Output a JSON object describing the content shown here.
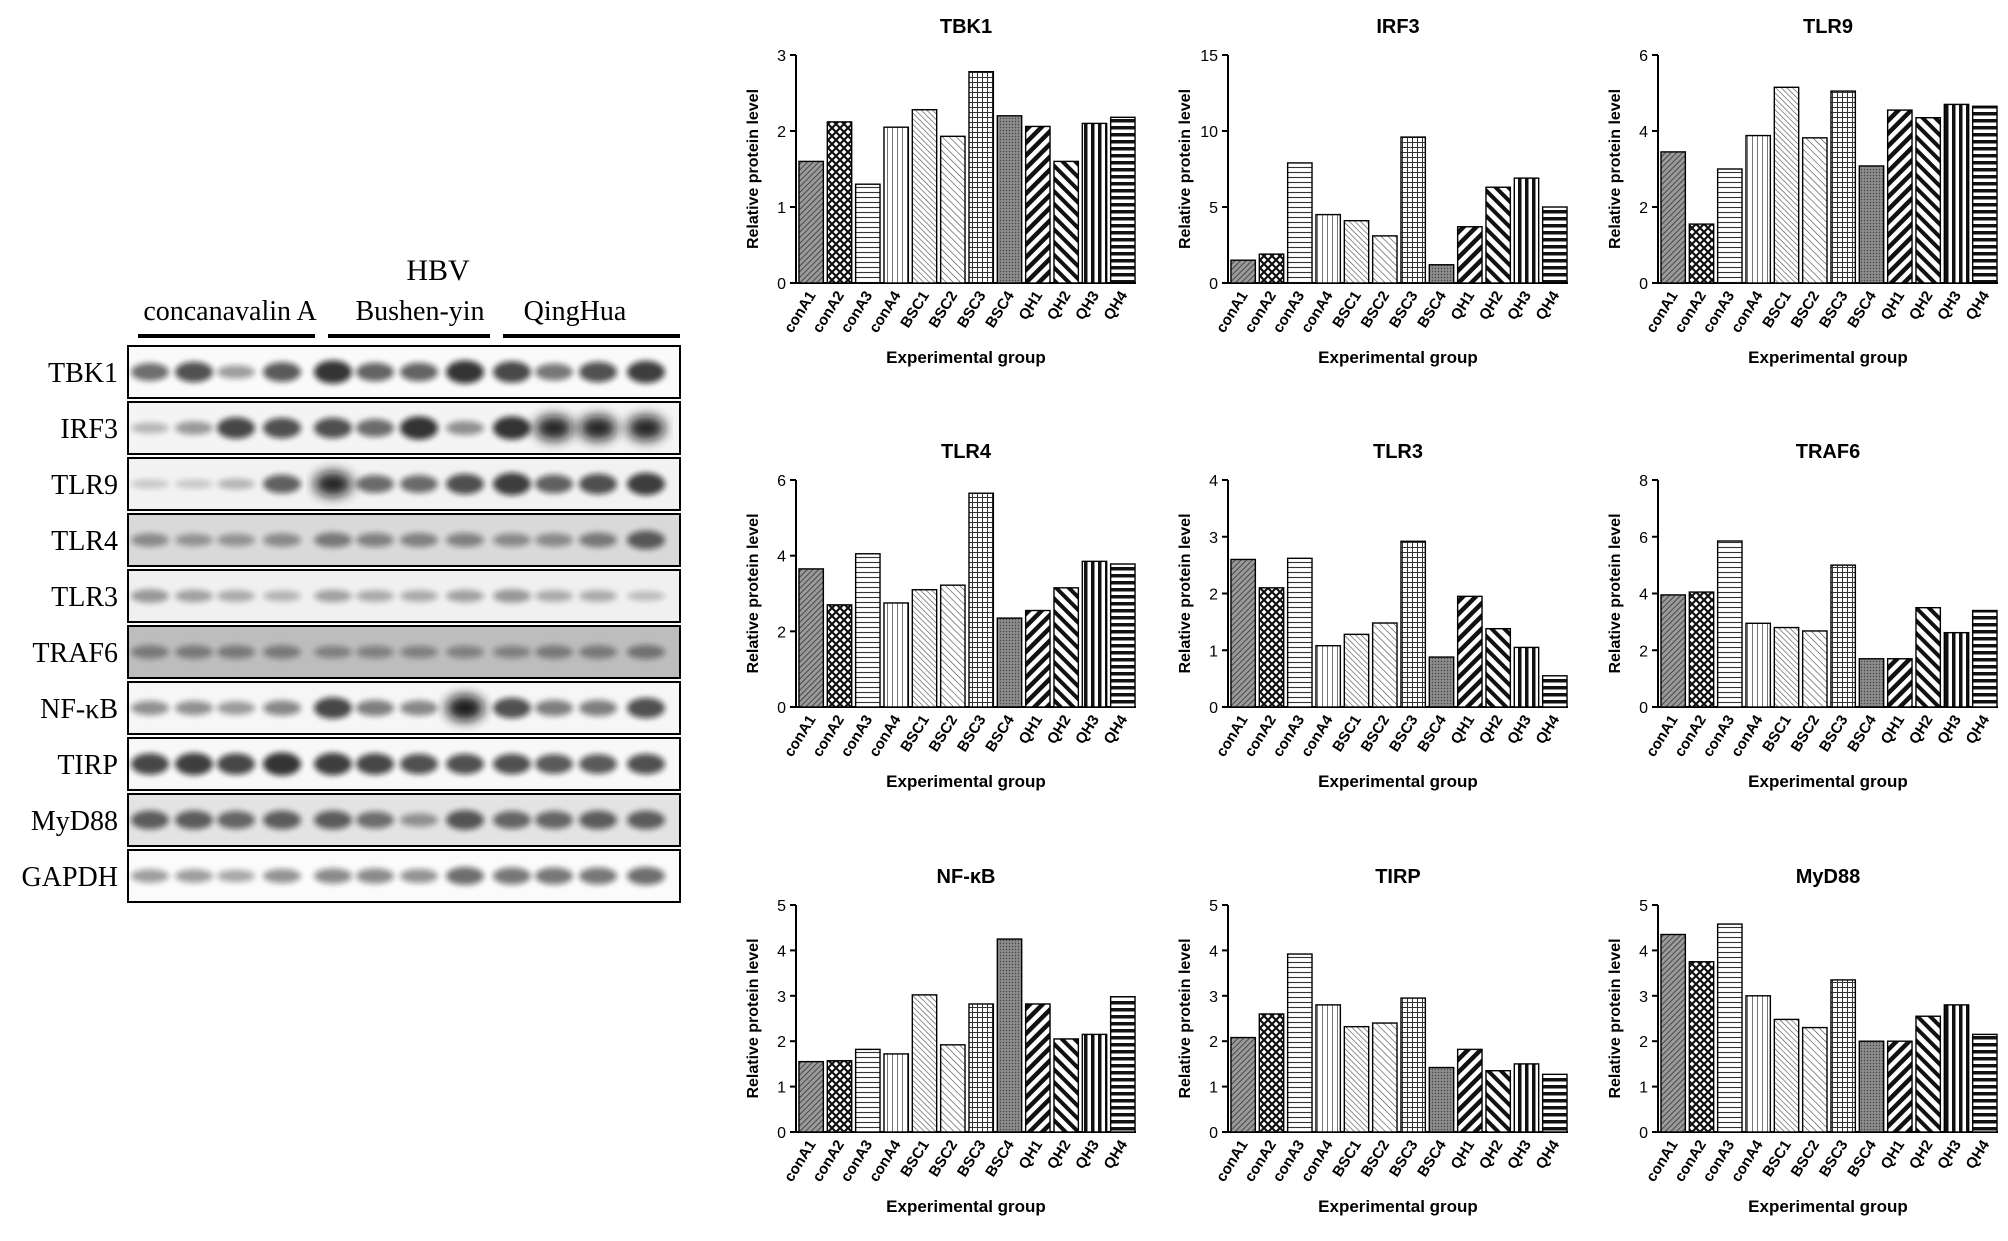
{
  "blot": {
    "header_hbv": "HBV",
    "groups": [
      "concanavalin A",
      "Bushen-yin",
      "QingHua"
    ],
    "proteins": [
      "TBK1",
      "IRF3",
      "TLR9",
      "TLR4",
      "TLR3",
      "TRAF6",
      "NF-κB",
      "TIRP",
      "MyD88",
      "GAPDH"
    ]
  },
  "chart_data": [
    {
      "type": "bar",
      "title": "TBK1",
      "xlabel": "Experimental group",
      "ylabel": "Relative protein level",
      "categories": [
        "conA1",
        "conA2",
        "conA3",
        "conA4",
        "BSC1",
        "BSC2",
        "BSC3",
        "BSC4",
        "QH1",
        "QH2",
        "QH3",
        "QH4"
      ],
      "values": [
        1.6,
        2.12,
        1.3,
        2.05,
        2.28,
        1.93,
        2.78,
        2.2,
        2.06,
        1.6,
        2.1,
        2.18
      ],
      "ylim": [
        0,
        3
      ],
      "yticks": [
        0,
        1,
        2,
        3
      ]
    },
    {
      "type": "bar",
      "title": "IRF3",
      "xlabel": "Experimental group",
      "ylabel": "Relative protein level",
      "categories": [
        "conA1",
        "conA2",
        "conA3",
        "conA4",
        "BSC1",
        "BSC2",
        "BSC3",
        "BSC4",
        "QH1",
        "QH2",
        "QH3",
        "QH4"
      ],
      "values": [
        1.5,
        1.9,
        7.9,
        4.5,
        4.1,
        3.1,
        9.6,
        1.2,
        3.7,
        6.3,
        6.9,
        5.0
      ],
      "ylim": [
        0,
        15
      ],
      "yticks": [
        0,
        5,
        10,
        15
      ]
    },
    {
      "type": "bar",
      "title": "TLR9",
      "xlabel": "Experimental group",
      "ylabel": "Relative protein level",
      "categories": [
        "conA1",
        "conA2",
        "conA3",
        "conA4",
        "BSC1",
        "BSC2",
        "BSC3",
        "BSC4",
        "QH1",
        "QH2",
        "QH3",
        "QH4"
      ],
      "values": [
        3.45,
        1.55,
        3.0,
        3.88,
        5.15,
        3.82,
        5.05,
        3.08,
        4.55,
        4.35,
        4.7,
        4.65
      ],
      "ylim": [
        0,
        6
      ],
      "yticks": [
        0,
        2,
        4,
        6
      ]
    },
    {
      "type": "bar",
      "title": "TLR4",
      "xlabel": "Experimental group",
      "ylabel": "Relative protein level",
      "categories": [
        "conA1",
        "conA2",
        "conA3",
        "conA4",
        "BSC1",
        "BSC2",
        "BSC3",
        "BSC4",
        "QH1",
        "QH2",
        "QH3",
        "QH4"
      ],
      "values": [
        3.65,
        2.7,
        4.05,
        2.75,
        3.1,
        3.22,
        5.65,
        2.35,
        2.55,
        3.15,
        3.85,
        3.78
      ],
      "ylim": [
        0,
        6
      ],
      "yticks": [
        0,
        2,
        4,
        6
      ]
    },
    {
      "type": "bar",
      "title": "TLR3",
      "xlabel": "Experimental group",
      "ylabel": "Relative protein level",
      "categories": [
        "conA1",
        "conA2",
        "conA3",
        "conA4",
        "BSC1",
        "BSC2",
        "BSC3",
        "BSC4",
        "QH1",
        "QH2",
        "QH3",
        "QH4"
      ],
      "values": [
        2.6,
        2.1,
        2.62,
        1.08,
        1.28,
        1.48,
        2.92,
        0.88,
        1.95,
        1.38,
        1.05,
        0.55
      ],
      "ylim": [
        0,
        4
      ],
      "yticks": [
        0,
        1,
        2,
        3,
        4
      ]
    },
    {
      "type": "bar",
      "title": "TRAF6",
      "xlabel": "Experimental group",
      "ylabel": "Relative protein level",
      "categories": [
        "conA1",
        "conA2",
        "conA3",
        "conA4",
        "BSC1",
        "BSC2",
        "BSC3",
        "BSC4",
        "QH1",
        "QH2",
        "QH3",
        "QH4"
      ],
      "values": [
        3.95,
        4.05,
        5.85,
        2.95,
        2.8,
        2.68,
        5.0,
        1.7,
        1.7,
        3.5,
        2.62,
        3.4
      ],
      "ylim": [
        0,
        8
      ],
      "yticks": [
        0,
        2,
        4,
        6,
        8
      ]
    },
    {
      "type": "bar",
      "title": "NF-κB",
      "xlabel": "Experimental group",
      "ylabel": "Relative protein level",
      "categories": [
        "conA1",
        "conA2",
        "conA3",
        "conA4",
        "BSC1",
        "BSC2",
        "BSC3",
        "BSC4",
        "QH1",
        "QH2",
        "QH3",
        "QH4"
      ],
      "values": [
        1.55,
        1.57,
        1.82,
        1.72,
        3.02,
        1.92,
        2.82,
        4.25,
        2.82,
        2.05,
        2.15,
        2.98
      ],
      "ylim": [
        0,
        5
      ],
      "yticks": [
        0,
        1,
        2,
        3,
        4,
        5
      ]
    },
    {
      "type": "bar",
      "title": "TIRP",
      "xlabel": "Experimental group",
      "ylabel": "Relative protein level",
      "categories": [
        "conA1",
        "conA2",
        "conA3",
        "conA4",
        "BSC1",
        "BSC2",
        "BSC3",
        "BSC4",
        "QH1",
        "QH2",
        "QH3",
        "QH4"
      ],
      "values": [
        2.08,
        2.6,
        3.92,
        2.8,
        2.32,
        2.4,
        2.95,
        1.42,
        1.82,
        1.35,
        1.5,
        1.27
      ],
      "ylim": [
        0,
        5
      ],
      "yticks": [
        0,
        1,
        2,
        3,
        4,
        5
      ]
    },
    {
      "type": "bar",
      "title": "MyD88",
      "xlabel": "Experimental group",
      "ylabel": "Relative protein level",
      "categories": [
        "conA1",
        "conA2",
        "conA3",
        "conA4",
        "BSC1",
        "BSC2",
        "BSC3",
        "BSC4",
        "QH1",
        "QH2",
        "QH3",
        "QH4"
      ],
      "values": [
        4.35,
        3.75,
        4.58,
        3.0,
        2.48,
        2.3,
        3.35,
        2.0,
        2.0,
        2.55,
        2.8,
        2.15
      ],
      "ylim": [
        0,
        5
      ],
      "yticks": [
        0,
        1,
        2,
        3,
        4,
        5
      ]
    }
  ]
}
